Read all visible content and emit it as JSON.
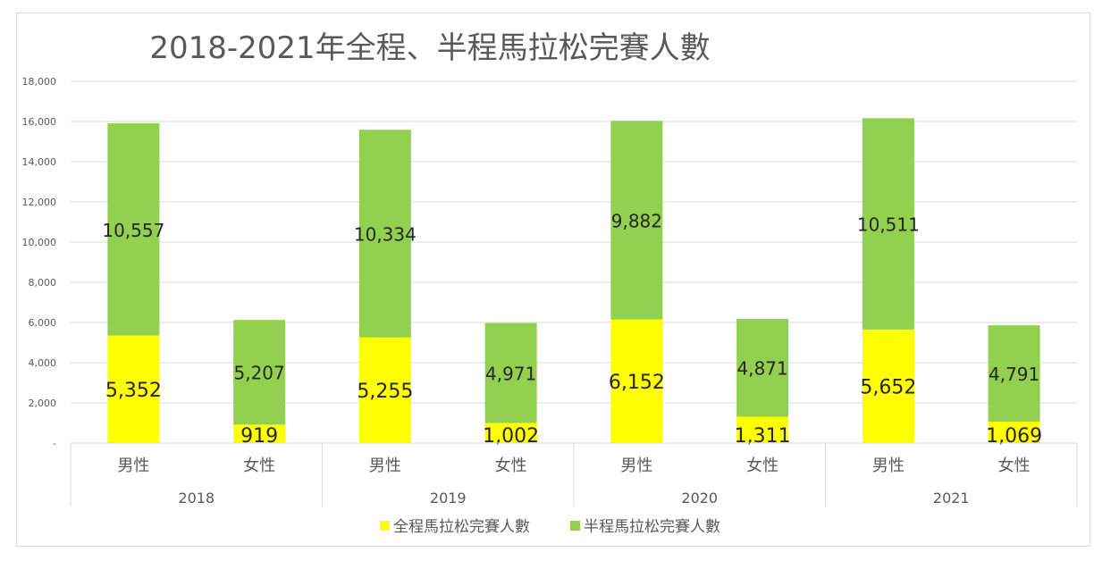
{
  "chart_data": {
    "type": "bar",
    "stacked": true,
    "title": "2018-2021年全程、半程馬拉松完賽人數",
    "xlabel": "",
    "ylabel": "",
    "ylim": [
      0,
      18000
    ],
    "yticks": [
      0,
      2000,
      4000,
      6000,
      8000,
      10000,
      12000,
      14000,
      16000,
      18000
    ],
    "ytick_labels": [
      "-",
      "2,000",
      "4,000",
      "6,000",
      "8,000",
      "10,000",
      "12,000",
      "14,000",
      "16,000",
      "18,000"
    ],
    "groups": [
      "2018",
      "2019",
      "2020",
      "2021"
    ],
    "categories": [
      "男性",
      "女性",
      "男性",
      "女性",
      "男性",
      "女性",
      "男性",
      "女性"
    ],
    "grid": true,
    "legend_position": "bottom",
    "series": [
      {
        "name": "全程馬拉松完賽人數",
        "color": "#ffff00",
        "values": [
          5352,
          919,
          5255,
          1002,
          6152,
          1311,
          5652,
          1069
        ],
        "labels": [
          "5,352",
          "919",
          "5,255",
          "1,002",
          "6,152",
          "1,311",
          "5,652",
          "1,069"
        ]
      },
      {
        "name": "半程馬拉松完賽人數",
        "color": "#92d050",
        "values": [
          10557,
          5207,
          10334,
          4971,
          9882,
          4871,
          10511,
          4791
        ],
        "labels": [
          "10,557",
          "5,207",
          "10,334",
          "4,971",
          "9,882",
          "4,871",
          "10,511",
          "4,791"
        ]
      }
    ]
  }
}
